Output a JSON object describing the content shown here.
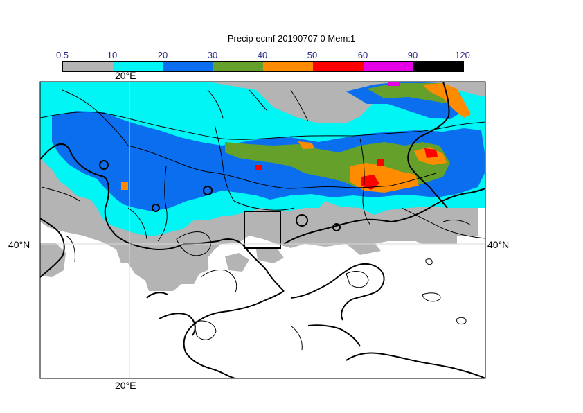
{
  "title": "Precip ecmf 20190707 0 Mem:1",
  "colorbar": {
    "labels": [
      "0.5",
      "10",
      "20",
      "30",
      "40",
      "50",
      "60",
      "90",
      "120"
    ],
    "colors": [
      "#b4b4b4",
      "#00f5f5",
      "#0a6eef",
      "#64a02a",
      "#ff8c00",
      "#ff0000",
      "#e600e6",
      "#000000"
    ]
  },
  "map": {
    "lon_label_top": "20°E",
    "lon_label_bottom": "20°E",
    "lat_label_left": "40°N",
    "lat_label_right": "40°N"
  }
}
